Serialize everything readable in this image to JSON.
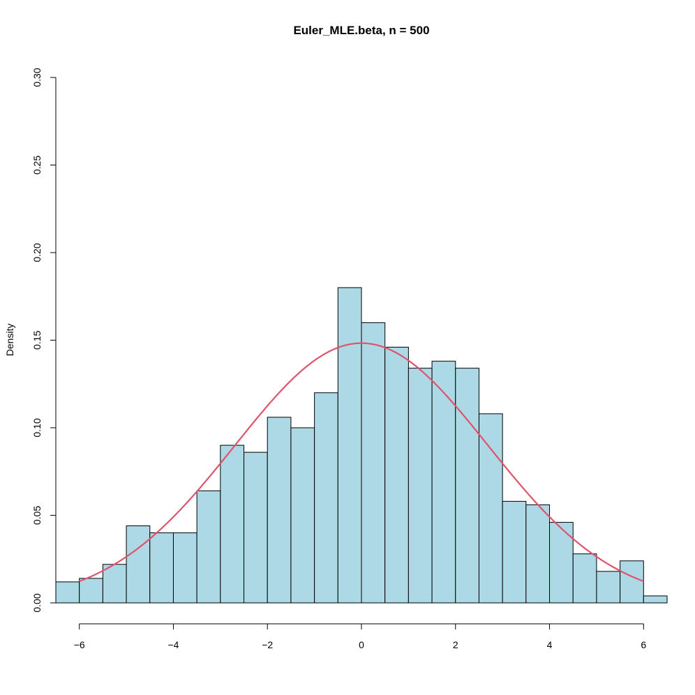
{
  "chart_data": {
    "type": "bar",
    "title": "Euler_MLE.beta, n = 500",
    "xlabel": "",
    "ylabel": "Density",
    "xlim": [
      -6.5,
      6.5
    ],
    "ylim": [
      0,
      0.3
    ],
    "x_ticks": [
      -6,
      -4,
      -2,
      0,
      2,
      4,
      6
    ],
    "x_tick_labels": [
      "−6",
      "−4",
      "−2",
      "0",
      "2",
      "4",
      "6"
    ],
    "y_ticks": [
      0,
      0.05,
      0.1,
      0.15,
      0.2,
      0.25,
      0.3
    ],
    "y_tick_labels": [
      "0.00",
      "0.05",
      "0.10",
      "0.15",
      "0.20",
      "0.25",
      "0.30"
    ],
    "bin_width": 0.5,
    "bin_edges": [
      -6.5,
      -6,
      -5.5,
      -5,
      -4.5,
      -4,
      -3.5,
      -3,
      -2.5,
      -2,
      -1.5,
      -1,
      -0.5,
      0,
      0.5,
      1,
      1.5,
      2,
      2.5,
      3,
      3.5,
      4,
      4.5,
      5,
      5.5,
      6,
      6.5
    ],
    "values": [
      0.012,
      0.014,
      0.022,
      0.044,
      0.04,
      0.04,
      0.064,
      0.09,
      0.086,
      0.106,
      0.1,
      0.12,
      0.18,
      0.16,
      0.146,
      0.134,
      0.138,
      0.134,
      0.108,
      0.058,
      0.056,
      0.046,
      0.028,
      0.018,
      0.024,
      0.004
    ],
    "series": [
      {
        "type": "line",
        "kind": "normal-density",
        "mean": 0,
        "sd": 2.69,
        "x_range": [
          -6,
          6
        ]
      }
    ],
    "grid": false,
    "colors": {
      "bar_fill": "#add8e6",
      "bar_stroke": "#000000",
      "curve": "#df536b"
    }
  }
}
